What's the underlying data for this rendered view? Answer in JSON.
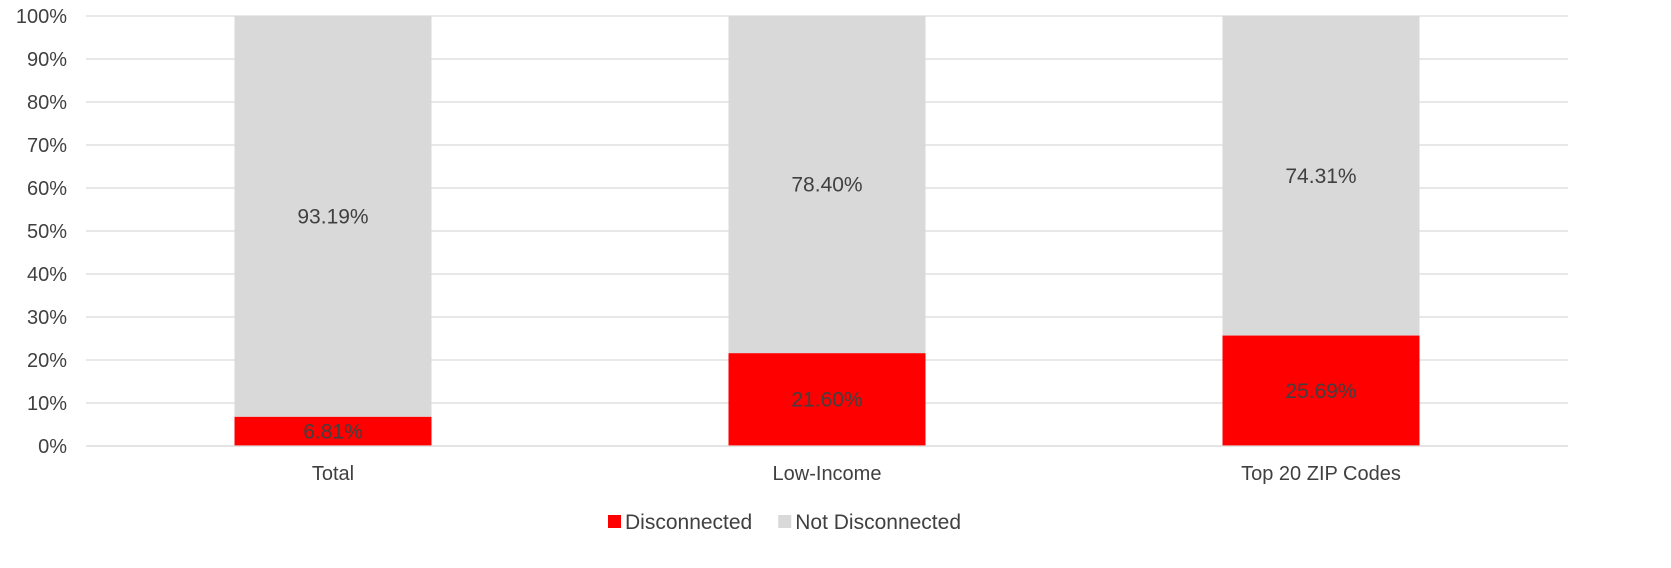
{
  "chart_data": {
    "type": "bar",
    "stacked": true,
    "percent_stacked": true,
    "categories": [
      "Total",
      "Low-Income",
      "Top 20 ZIP Codes"
    ],
    "series": [
      {
        "name": "Disconnected",
        "color": "#ff0000",
        "values": [
          6.81,
          21.6,
          25.69
        ],
        "labels": [
          "6.81%",
          "21.60%",
          "25.69%"
        ]
      },
      {
        "name": "Not Disconnected",
        "color": "#d9d9d9",
        "values": [
          93.19,
          78.4,
          74.31
        ],
        "labels": [
          "93.19%",
          "78.40%",
          "74.31%"
        ]
      }
    ],
    "ylim": [
      0,
      100
    ],
    "yticks": [
      "0%",
      "10%",
      "20%",
      "30%",
      "40%",
      "50%",
      "60%",
      "70%",
      "80%",
      "90%",
      "100%"
    ],
    "grid": true,
    "legend_position": "bottom",
    "gridline_color": "#d9d9d9",
    "text_color": "#404040"
  }
}
